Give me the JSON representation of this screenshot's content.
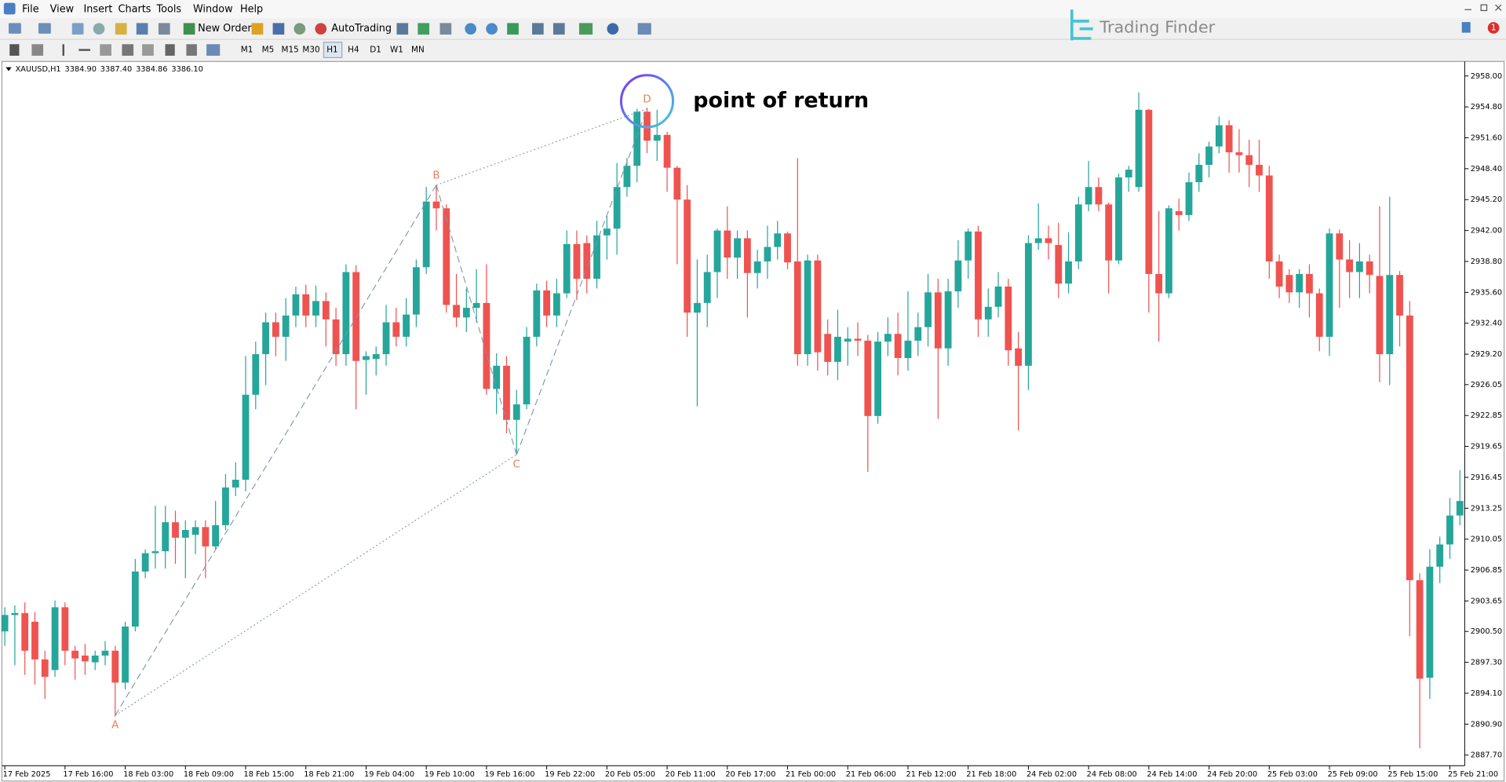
{
  "window": {
    "menu": [
      "File",
      "View",
      "Insert",
      "Charts",
      "Tools",
      "Window",
      "Help"
    ],
    "toolbar": {
      "new_order": "New Order",
      "auto_trading": "AutoTrading"
    },
    "timeframes": [
      "M1",
      "M5",
      "M15",
      "M30",
      "H1",
      "H4",
      "D1",
      "W1",
      "MN"
    ],
    "logo": "Trading Finder",
    "badge": "1"
  },
  "chart_data": {
    "type": "candlestick",
    "symbol": "XAUUSD,H1",
    "header_values": [
      "3384.90",
      "3387.40",
      "3384.86",
      "3386.10"
    ],
    "colors": {
      "up": "#26a69a",
      "down": "#ef5350"
    },
    "categories": [
      "17 Feb 2025",
      null,
      null,
      null,
      null,
      null,
      "17 Feb 16:00",
      null,
      null,
      null,
      null,
      null,
      "18 Feb 03:00",
      null,
      null,
      null,
      null,
      null,
      "18 Feb 09:00",
      null,
      null,
      null,
      null,
      null,
      "18 Feb 15:00",
      null,
      null,
      null,
      null,
      null,
      "18 Feb 21:00",
      null,
      null,
      null,
      null,
      null,
      "19 Feb 04:00",
      null,
      null,
      null,
      null,
      null,
      "19 Feb 10:00",
      null,
      null,
      null,
      null,
      null,
      "19 Feb 16:00",
      null,
      null,
      null,
      null,
      null,
      "19 Feb 22:00",
      null,
      null,
      null,
      null,
      null,
      "20 Feb 05:00",
      null,
      null,
      null,
      null,
      null,
      "20 Feb 11:00",
      null,
      null,
      null,
      null,
      null,
      "20 Feb 17:00",
      null,
      null,
      null,
      null,
      null,
      "21 Feb 00:00",
      null,
      null,
      null,
      null,
      null,
      "21 Feb 06:00",
      null,
      null,
      null,
      null,
      null,
      "21 Feb 12:00",
      null,
      null,
      null,
      null,
      null,
      "21 Feb 18:00",
      null,
      null,
      null,
      null,
      null,
      "24 Feb 02:00",
      null,
      null,
      null,
      null,
      null,
      "24 Feb 08:00",
      null,
      null,
      null,
      null,
      null,
      "24 Feb 14:00",
      null,
      null,
      null,
      null,
      null,
      "24 Feb 20:00",
      null,
      null,
      null,
      null,
      null,
      "25 Feb 03:00",
      null,
      null,
      null,
      null,
      null,
      "25 Feb 09:00",
      null,
      null,
      null,
      null,
      null,
      "25 Feb 15:00",
      null,
      null,
      null,
      null,
      null,
      "25 Feb 21:00",
      null
    ],
    "open": [
      2900.5,
      2902.2,
      2902.4,
      2901.5,
      2897.6,
      2896.5,
      2903,
      2898.5,
      2898,
      2897.3,
      2898,
      2898.5,
      2895.2,
      2901,
      2906.7,
      2908.6,
      2908.8,
      2911.8,
      2910.2,
      2910.5,
      2911.3,
      2909.3,
      2911.5,
      2915.4,
      2916.2,
      2925,
      2929.2,
      2932.5,
      2931,
      2933.2,
      2935.4,
      2933.2,
      2934.7,
      2932.8,
      2929.2,
      2937.7,
      2928.6,
      2928.7,
      2929.2,
      2932.5,
      2931,
      2933.3,
      2938.2,
      2945,
      2944.3,
      2934.3,
      2933,
      2934,
      2934.5,
      2925.6,
      2928,
      2922.4,
      2924,
      2931,
      2935.8,
      2933.2,
      2935.5,
      2940.6,
      2940.7,
      2937,
      2941.5,
      2942.2,
      2946.5,
      2948.7,
      2954.3,
      2951.3,
      2951.9,
      2948.5,
      2945.2,
      2933.5,
      2934.5,
      2937.7,
      2942,
      2939.2,
      2941.2,
      2937.6,
      2938.8,
      2940.3,
      2941.7,
      2938.8,
      2929.2,
      2938.9,
      2931.3,
      2928.4,
      2930.5,
      2930.8,
      2930.6,
      2922.8,
      2930.5,
      2931.3,
      2928.8,
      2930.6,
      2932,
      2935.6,
      2929.8,
      2935.7,
      2938.9,
      2941.9,
      2932.8,
      2934.1,
      2936.2,
      2929.8,
      2928,
      2940.7,
      2941.2,
      2940.5,
      2936.5,
      2938.8,
      2944.7,
      2946.5,
      2944.7,
      2938.9,
      2947.5,
      2946.5,
      2954.5,
      2937.5,
      2935.5,
      2944,
      2943.6,
      2947,
      2948.8,
      2950.7,
      2952.9,
      2950.1,
      2949.8,
      2948.8,
      2947.7,
      2938.8,
      2937.4,
      2935.6,
      2937.5,
      2935.5,
      2931,
      2941.7,
      2939,
      2937.7,
      2938.8,
      2937.3,
      2929.2,
      2937.4,
      2933.2,
      2905.8,
      2895.7,
      2907.2,
      2909.5,
      2912.5
    ],
    "high": [
      2903,
      2903.2,
      2903.5,
      2902.5,
      2898.5,
      2903.7,
      2903.5,
      2899,
      2899.2,
      2898.5,
      2899.5,
      2899,
      2901.5,
      2908,
      2909,
      2913.5,
      2913.5,
      2913,
      2912,
      2912,
      2912,
      2914,
      2916.8,
      2918,
      2929,
      2930.5,
      2933.5,
      2933.5,
      2935,
      2936.2,
      2936.4,
      2936.3,
      2935.6,
      2934,
      2938.5,
      2938.4,
      2929.5,
      2930,
      2934.3,
      2934,
      2935,
      2939,
      2946.5,
      2946.7,
      2944.7,
      2937.5,
      2936,
      2938,
      2938.5,
      2929.3,
      2929,
      2925.5,
      2932,
      2936.5,
      2936.8,
      2937,
      2942,
      2942,
      2941.5,
      2943,
      2943.5,
      2949,
      2949.5,
      2954.6,
      2954.7,
      2954.5,
      2952.2,
      2948.7,
      2946.7,
      2939,
      2939.5,
      2942.2,
      2944.5,
      2942,
      2942,
      2940,
      2942.5,
      2943,
      2941.9,
      2949.5,
      2939.5,
      2939.5,
      2932.8,
      2933.8,
      2932,
      2932.5,
      2931.2,
      2931.5,
      2933,
      2933.5,
      2935.7,
      2933.5,
      2937.5,
      2937,
      2937,
      2941,
      2942.2,
      2942.5,
      2936,
      2937.7,
      2937,
      2931.5,
      2941.5,
      2944.8,
      2942.5,
      2942.8,
      2941.8,
      2945.5,
      2949.2,
      2947.5,
      2944.9,
      2947.9,
      2948.7,
      2956.3,
      2954.6,
      2944,
      2944.6,
      2945.3,
      2948,
      2950,
      2951.2,
      2953.8,
      2953.4,
      2952.5,
      2951.4,
      2951.4,
      2948.7,
      2939.5,
      2938,
      2938,
      2938.5,
      2936,
      2942.2,
      2942.1,
      2941,
      2940.7,
      2939.5,
      2944.5,
      2945.5,
      2937.8,
      2934.7,
      2906.5,
      2909,
      2910.3,
      2914.3,
      2917.2
    ],
    "low": [
      2899,
      2897,
      2896,
      2895,
      2893.5,
      2895.8,
      2897,
      2895.5,
      2896,
      2896.5,
      2897,
      2891.7,
      2894.5,
      2900.5,
      2906,
      2907,
      2907,
      2907.5,
      2906,
      2908.5,
      2906,
      2909,
      2911,
      2914.5,
      2915,
      2923.5,
      2926,
      2929,
      2928.5,
      2932,
      2932,
      2932,
      2930,
      2928,
      2928,
      2923.5,
      2925,
      2927,
      2928,
      2930,
      2930,
      2932,
      2937.5,
      2942,
      2933.5,
      2932,
      2931.5,
      2932.5,
      2925,
      2923,
      2921,
      2918.8,
      2923.5,
      2930,
      2932,
      2932,
      2935,
      2934.8,
      2935.5,
      2936,
      2939,
      2939.5,
      2945.5,
      2947,
      2950,
      2949.2,
      2946,
      2938.5,
      2931,
      2923.8,
      2932,
      2935,
      2937,
      2937,
      2933,
      2936,
      2937,
      2939,
      2938,
      2928,
      2928,
      2927.5,
      2927,
      2926.5,
      2928,
      2929,
      2917,
      2922,
      2929,
      2927,
      2927.5,
      2929,
      2930,
      2922.5,
      2928,
      2934,
      2937,
      2931,
      2931,
      2933,
      2928,
      2921.3,
      2925.5,
      2940,
      2939,
      2935,
      2935.5,
      2938,
      2944,
      2944,
      2935.5,
      2938.5,
      2946,
      2946,
      2933.5,
      2930.5,
      2935,
      2942,
      2943,
      2946,
      2947.5,
      2950,
      2948,
      2948,
      2946.5,
      2946,
      2937,
      2935,
      2934.5,
      2934,
      2933,
      2929.5,
      2929,
      2934,
      2935,
      2935,
      2935.5,
      2926.3,
      2926,
      2930,
      2900,
      2888.4,
      2893.5,
      2905.5,
      2908,
      2911.5
    ],
    "close": [
      2902.2,
      2902.4,
      2898.5,
      2897.6,
      2895.8,
      2903,
      2898.5,
      2897.7,
      2897.4,
      2898,
      2898.5,
      2895.2,
      2901,
      2906.7,
      2908.6,
      2908.8,
      2911.8,
      2910.2,
      2911,
      2911.3,
      2909.3,
      2911.5,
      2915.4,
      2916.2,
      2925,
      2929.2,
      2932.5,
      2931,
      2933.2,
      2935.4,
      2933.2,
      2934.7,
      2932.8,
      2929.2,
      2937.7,
      2928.5,
      2929,
      2929.2,
      2932.5,
      2931,
      2933.3,
      2938.2,
      2945,
      2944.3,
      2934.3,
      2933,
      2934,
      2934.5,
      2925.6,
      2928,
      2922.4,
      2924,
      2931,
      2935.8,
      2933.2,
      2935.5,
      2940.6,
      2937,
      2937,
      2941.5,
      2942.2,
      2946.5,
      2948.7,
      2954.3,
      2951.3,
      2951.9,
      2948.5,
      2945.2,
      2933.5,
      2934.5,
      2937.7,
      2942,
      2939.2,
      2941.2,
      2937.6,
      2938.8,
      2940.3,
      2941.7,
      2938.7,
      2929.2,
      2938.9,
      2929.4,
      2928.4,
      2931,
      2930.8,
      2930.6,
      2922.8,
      2930.5,
      2931.3,
      2928.8,
      2930.6,
      2932,
      2935.6,
      2929.8,
      2935.7,
      2938.9,
      2941.9,
      2932.8,
      2934.1,
      2936.2,
      2929.6,
      2928,
      2940.7,
      2941.2,
      2940.7,
      2936.5,
      2938.8,
      2944.7,
      2946.5,
      2944.7,
      2938.9,
      2947.5,
      2948.3,
      2954.5,
      2937.5,
      2935.5,
      2944.3,
      2943.6,
      2947,
      2948.8,
      2950.7,
      2952.9,
      2950.1,
      2949.8,
      2948.8,
      2947.7,
      2938.8,
      2936.2,
      2935.6,
      2937.5,
      2935.5,
      2931,
      2941.7,
      2939,
      2937.7,
      2938.8,
      2937.4,
      2929.2,
      2937.4,
      2933.2,
      2905.8,
      2895.6,
      2907.2,
      2909.5,
      2912.5,
      2914
    ],
    "ylim": [
      2886.6,
      2959.4
    ],
    "yticks": [
      {
        "value": 2958,
        "label": "2958.00"
      },
      {
        "value": 2954.8,
        "label": "2954.80"
      },
      {
        "value": 2951.6,
        "label": "2951.60"
      },
      {
        "value": 2948.4,
        "label": "2948.40"
      },
      {
        "value": 2945.2,
        "label": "2945.20"
      },
      {
        "value": 2942,
        "label": "2942.00"
      },
      {
        "value": 2938.8,
        "label": "2938.80"
      },
      {
        "value": 2935.6,
        "label": "2935.60"
      },
      {
        "value": 2932.4,
        "label": "2932.40"
      },
      {
        "value": 2929.2,
        "label": "2929.20"
      },
      {
        "value": 2926.05,
        "label": "2926.05"
      },
      {
        "value": 2922.85,
        "label": "2922.85"
      },
      {
        "value": 2919.65,
        "label": "2919.65"
      },
      {
        "value": 2916.45,
        "label": "2916.45"
      },
      {
        "value": 2913.25,
        "label": "2913.25"
      },
      {
        "value": 2910.05,
        "label": "2910.05"
      },
      {
        "value": 2906.85,
        "label": "2906.85"
      },
      {
        "value": 2903.65,
        "label": "2903.65"
      },
      {
        "value": 2900.5,
        "label": "2900.50"
      },
      {
        "value": 2897.3,
        "label": "2897.30"
      },
      {
        "value": 2894.1,
        "label": "2894.10"
      },
      {
        "value": 2890.9,
        "label": "2890.90"
      },
      {
        "value": 2887.7,
        "label": "2887.70"
      }
    ],
    "pattern": {
      "color": "#e8845a",
      "line_color": "#7f93a8",
      "points": [
        {
          "label": "A",
          "candle": 11,
          "value": 2891.8
        },
        {
          "label": "B",
          "candle": 43,
          "value": 2946.7
        },
        {
          "label": "C",
          "candle": 51,
          "value": 2918.8
        },
        {
          "label": "D",
          "candle": 64,
          "value": 2954.6
        }
      ]
    },
    "annotation": {
      "text": "point of return",
      "point": 3
    }
  }
}
